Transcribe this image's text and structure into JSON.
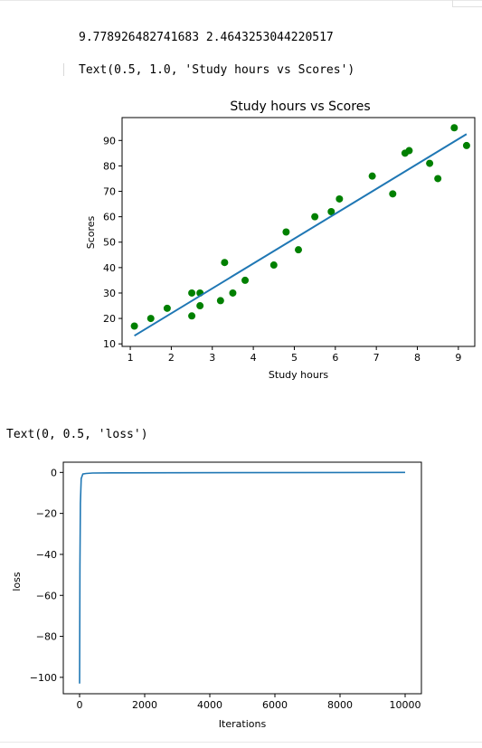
{
  "output": {
    "line1": "9.778926482741683 2.4643253044220517",
    "line2": "Text(0.5, 1.0, 'Study hours vs Scores')",
    "line3": "Text(0, 0.5, 'loss')"
  },
  "colors": {
    "scatter_point": "#008000",
    "line": "#1f77b4",
    "axes": "#000000"
  },
  "chart_data": [
    {
      "type": "scatter",
      "title": "Study hours vs Scores",
      "xlabel": "Study hours",
      "ylabel": "Scores",
      "xlim": [
        0.8,
        9.4
      ],
      "ylim": [
        9,
        99
      ],
      "xticks": [
        1,
        2,
        3,
        4,
        5,
        6,
        7,
        8,
        9
      ],
      "yticks": [
        10,
        20,
        30,
        40,
        50,
        60,
        70,
        80,
        90
      ],
      "points": [
        {
          "x": 1.1,
          "y": 17
        },
        {
          "x": 1.5,
          "y": 20
        },
        {
          "x": 1.9,
          "y": 24
        },
        {
          "x": 2.5,
          "y": 21
        },
        {
          "x": 2.5,
          "y": 30
        },
        {
          "x": 2.7,
          "y": 25
        },
        {
          "x": 2.7,
          "y": 30
        },
        {
          "x": 3.2,
          "y": 27
        },
        {
          "x": 3.3,
          "y": 42
        },
        {
          "x": 3.5,
          "y": 30
        },
        {
          "x": 3.8,
          "y": 35
        },
        {
          "x": 4.5,
          "y": 41
        },
        {
          "x": 4.8,
          "y": 54
        },
        {
          "x": 5.1,
          "y": 47
        },
        {
          "x": 5.5,
          "y": 60
        },
        {
          "x": 5.9,
          "y": 62
        },
        {
          "x": 6.1,
          "y": 67
        },
        {
          "x": 6.9,
          "y": 76
        },
        {
          "x": 7.4,
          "y": 69
        },
        {
          "x": 7.7,
          "y": 85
        },
        {
          "x": 7.8,
          "y": 86
        },
        {
          "x": 8.3,
          "y": 81
        },
        {
          "x": 8.5,
          "y": 75
        },
        {
          "x": 8.9,
          "y": 95
        },
        {
          "x": 9.2,
          "y": 88
        }
      ],
      "fit_line": {
        "x": [
          1.1,
          9.2
        ],
        "y": [
          13.2,
          92.5
        ]
      },
      "grid": false,
      "legend": "none"
    },
    {
      "type": "line",
      "title": "",
      "xlabel": "Iterations",
      "ylabel": "loss",
      "xlim": [
        -500,
        10500
      ],
      "ylim": [
        -108,
        5
      ],
      "xticks": [
        0,
        2000,
        4000,
        6000,
        8000,
        10000
      ],
      "yticks": [
        0,
        -20,
        -40,
        -60,
        -80,
        -100
      ],
      "series": [
        {
          "x": [
            0,
            10,
            25,
            50,
            100,
            200,
            400,
            1000,
            10000
          ],
          "y": [
            -103,
            -45,
            -15,
            -3,
            -0.8,
            -0.5,
            -0.3,
            -0.2,
            0
          ]
        }
      ],
      "grid": false,
      "legend": "none"
    }
  ]
}
